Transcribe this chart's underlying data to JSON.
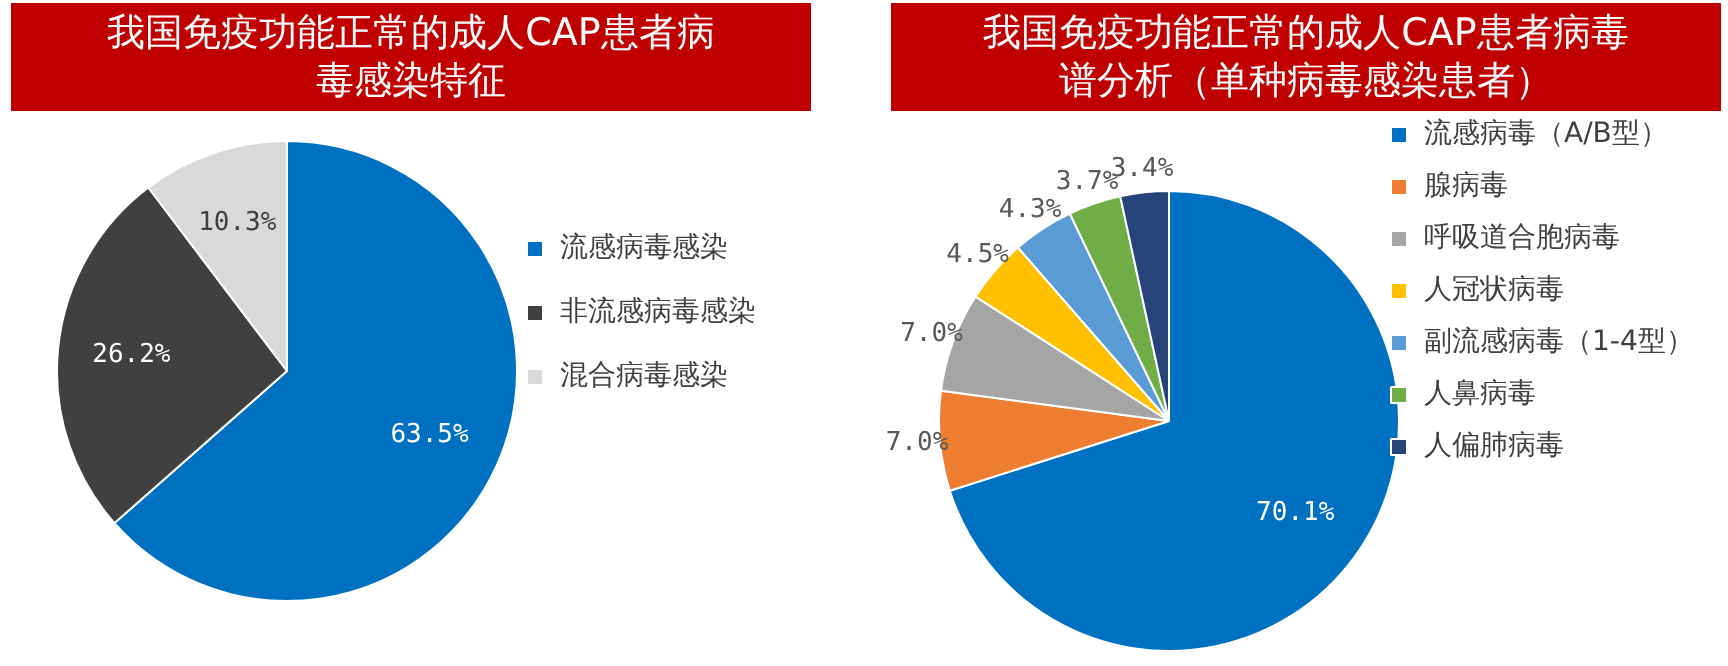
{
  "chart_data": [
    {
      "type": "pie",
      "title": "我国免疫功能正常的成人CAP患者病毒感染特征",
      "categories": [
        "流感病毒感染",
        "非流感病毒感染",
        "混合病毒感染"
      ],
      "values": [
        63.5,
        26.2,
        10.3
      ],
      "colors": [
        "#0070c0",
        "#404040",
        "#d9d9d9"
      ],
      "value_labels": [
        "63.5%",
        "26.2%",
        "10.3%"
      ],
      "legend": "right"
    },
    {
      "type": "pie",
      "title": "我国免疫功能正常的成人CAP患者病毒谱分析（单种病毒感染患者）",
      "categories": [
        "流感病毒（A/B型）",
        "腺病毒",
        "呼吸道合胞病毒",
        "人冠状病毒",
        "副流感病毒（1-4型）",
        "人鼻病毒",
        "人偏肺病毒"
      ],
      "values": [
        70.1,
        7.0,
        7.0,
        4.5,
        4.3,
        3.7,
        3.4
      ],
      "colors": [
        "#0070c0",
        "#ed7d31",
        "#a5a5a5",
        "#ffc000",
        "#5b9bd5",
        "#70ad47",
        "#264478"
      ],
      "value_labels": [
        "70.1%",
        "7.0%",
        "7.0%",
        "4.5%",
        "4.3%",
        "3.7%",
        "3.4%"
      ],
      "legend": "right"
    }
  ]
}
